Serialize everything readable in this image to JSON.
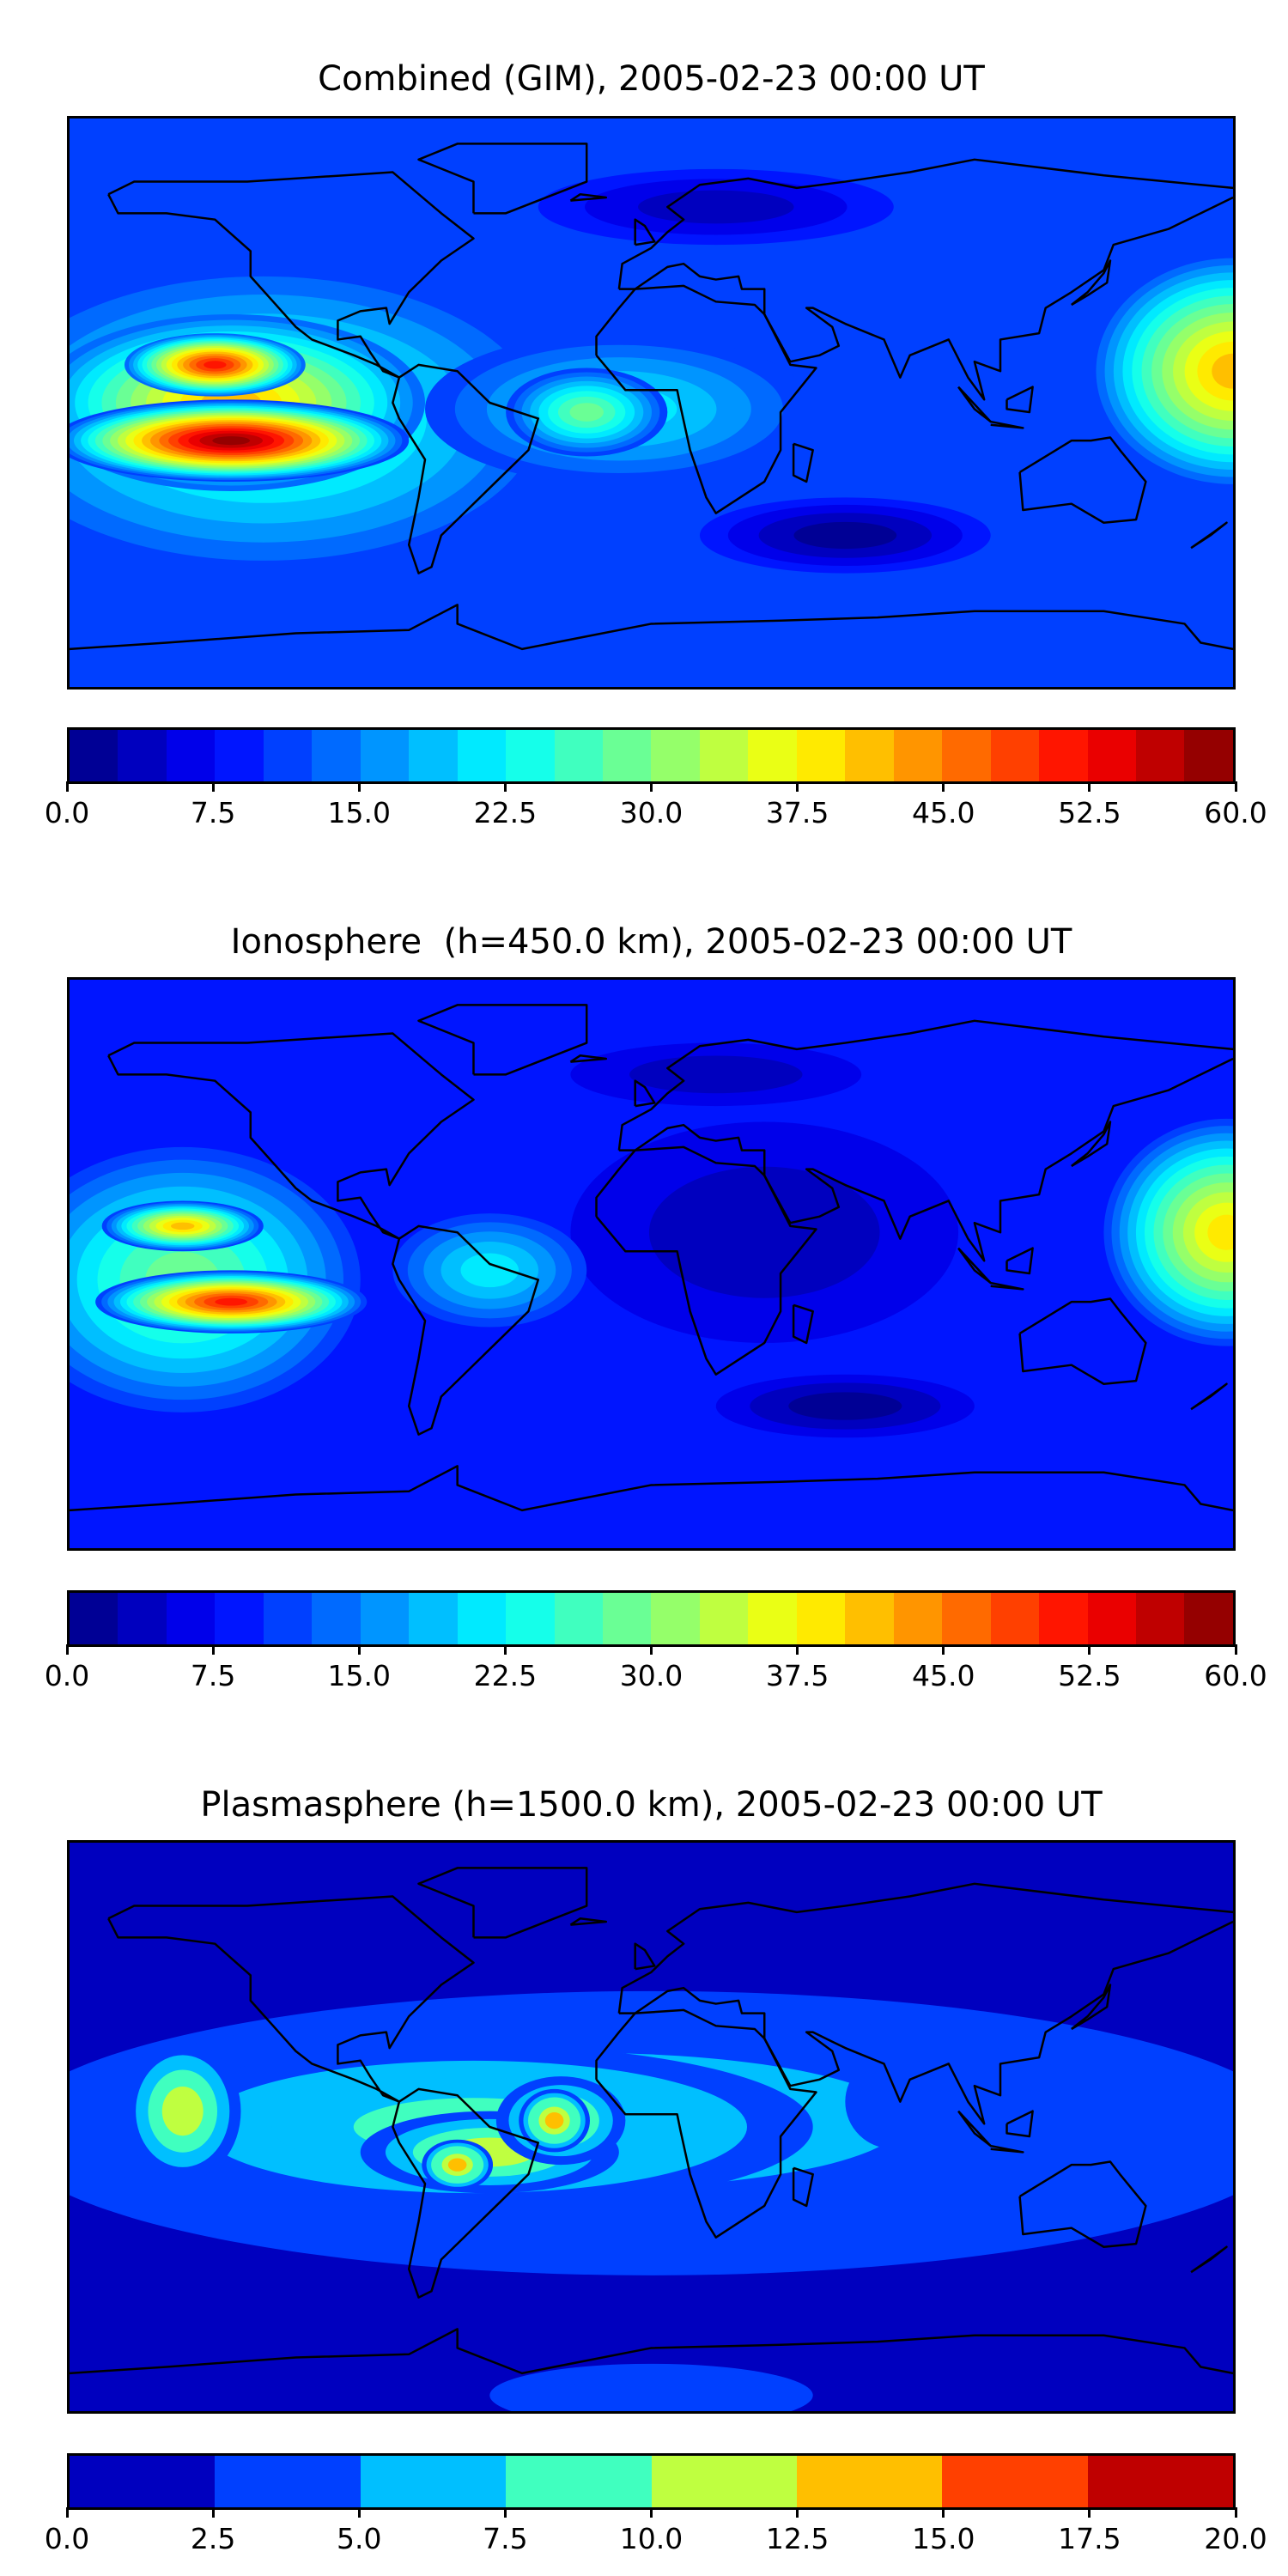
{
  "chart_data": [
    {
      "type": "heatmap",
      "subtype": "filled-contour world map",
      "title": "Combined (GIM), 2005-02-23 00:00 UT",
      "xlim": [
        -180,
        180
      ],
      "ylim": [
        -90,
        90
      ],
      "colorbar": {
        "min": 0,
        "max": 60,
        "step": 2.5,
        "ticks": [
          "0.0",
          "7.5",
          "15.0",
          "22.5",
          "30.0",
          "37.5",
          "45.0",
          "52.5",
          "60.0"
        ]
      },
      "background_value": 10,
      "features": [
        {
          "lon": 20,
          "lat": 62,
          "rlon": 55,
          "rlat": 12,
          "value": 3
        },
        {
          "lon": 60,
          "lat": -42,
          "rlon": 45,
          "rlat": 12,
          "value": 2
        },
        {
          "lon": -120,
          "lat": -5,
          "rlon": 85,
          "rlat": 45,
          "value": 25
        },
        {
          "lon": -10,
          "lat": -2,
          "rlon": 60,
          "rlat": 24,
          "value": 22
        },
        {
          "lon": -20,
          "lat": -3,
          "rlon": 25,
          "rlat": 14,
          "value": 28
        },
        {
          "lon": -130,
          "lat": 0,
          "rlon": 60,
          "rlat": 28,
          "value": 40
        },
        {
          "lon": -135,
          "lat": 12,
          "rlon": 28,
          "rlat": 10,
          "value": 50
        },
        {
          "lon": -130,
          "lat": -12,
          "rlon": 55,
          "rlat": 13,
          "value": 58
        },
        {
          "lon": 180,
          "lat": 10,
          "rlon": 45,
          "rlat": 38,
          "value": 42
        }
      ]
    },
    {
      "type": "heatmap",
      "subtype": "filled-contour world map",
      "title": "Ionosphere  (h=450.0 km), 2005-02-23 00:00 UT",
      "xlim": [
        -180,
        180
      ],
      "ylim": [
        -90,
        90
      ],
      "colorbar": {
        "min": 0,
        "max": 60,
        "step": 2.5,
        "ticks": [
          "0.0",
          "7.5",
          "15.0",
          "22.5",
          "30.0",
          "37.5",
          "45.0",
          "52.5",
          "60.0"
        ]
      },
      "background_value": 8,
      "features": [
        {
          "lon": 35,
          "lat": 10,
          "rlon": 60,
          "rlat": 35,
          "value": 4
        },
        {
          "lon": 20,
          "lat": 60,
          "rlon": 45,
          "rlat": 10,
          "value": 4
        },
        {
          "lon": 60,
          "lat": -45,
          "rlon": 40,
          "rlat": 10,
          "value": 2
        },
        {
          "lon": -145,
          "lat": -5,
          "rlon": 55,
          "rlat": 42,
          "value": 28
        },
        {
          "lon": -50,
          "lat": -2,
          "rlon": 30,
          "rlat": 18,
          "value": 20
        },
        {
          "lon": -145,
          "lat": 12,
          "rlon": 25,
          "rlat": 8,
          "value": 40
        },
        {
          "lon": -130,
          "lat": -12,
          "rlon": 42,
          "rlat": 10,
          "value": 50
        },
        {
          "lon": 178,
          "lat": 10,
          "rlon": 38,
          "rlat": 36,
          "value": 38
        }
      ]
    },
    {
      "type": "heatmap",
      "subtype": "filled-contour world map",
      "title": "Plasmasphere (h=1500.0 km), 2005-02-23 00:00 UT",
      "xlim": [
        -180,
        180
      ],
      "ylim": [
        -90,
        90
      ],
      "colorbar": {
        "min": 0,
        "max": 20,
        "step": 2.5,
        "ticks": [
          "0.0",
          "2.5",
          "5.0",
          "7.5",
          "10.0",
          "12.5",
          "15.0",
          "17.5",
          "20.0"
        ]
      },
      "background_value": 1,
      "features": [
        {
          "lon": 0,
          "lat": -2,
          "rlon": 200,
          "rlat": 45,
          "value": 4
        },
        {
          "lon": 0,
          "lat": -85,
          "rlon": 50,
          "rlat": 10,
          "value": 4
        },
        {
          "lon": -20,
          "lat": 2,
          "rlon": 165,
          "rlat": 36,
          "value": 6
        },
        {
          "lon": 75,
          "lat": 8,
          "rlon": 15,
          "rlat": 15,
          "value": 3
        },
        {
          "lon": 150,
          "lat": 5,
          "rlon": 7,
          "rlat": 12,
          "value": 3
        },
        {
          "lon": -55,
          "lat": 0,
          "rlon": 105,
          "rlat": 26,
          "value": 9
        },
        {
          "lon": -145,
          "lat": 5,
          "rlon": 18,
          "rlat": 22,
          "value": 11
        },
        {
          "lon": -50,
          "lat": -8,
          "rlon": 40,
          "rlat": 13,
          "value": 11
        },
        {
          "lon": -28,
          "lat": 2,
          "rlon": 20,
          "rlat": 14,
          "value": 11
        },
        {
          "lon": -60,
          "lat": -12,
          "rlon": 11,
          "rlat": 8,
          "value": 14
        },
        {
          "lon": -30,
          "lat": 2,
          "rlon": 11,
          "rlat": 10,
          "value": 14
        }
      ]
    }
  ]
}
